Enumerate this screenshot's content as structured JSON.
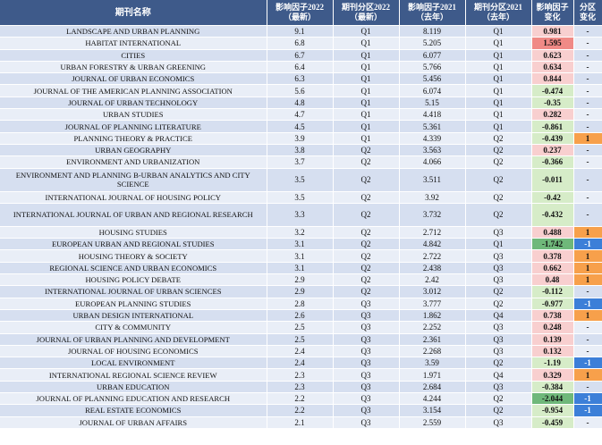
{
  "headers": {
    "name": "期刊名称",
    "if2022": "影响因子2022\n（最新）",
    "q2022": "期刊分区2022\n（最新）",
    "if2021": "影响因子2021\n（去年）",
    "q2021": "期刊分区2021\n（去年）",
    "if_change": "影响因子\n变化",
    "q_change": "分区\n变化"
  },
  "colors": {
    "header_bg": "#3e5a8a",
    "row_even": "#d6dff0",
    "row_odd": "#e9eef7",
    "increase_light": "#f8cfcf",
    "increase_strong": "#f08a86",
    "decrease_light": "#d6ecc8",
    "decrease_strong": "#6fb87a",
    "quartile_up": "#f7a04b",
    "quartile_down": "#3c7fd8"
  },
  "rows": [
    {
      "name": "LANDSCAPE AND URBAN PLANNING",
      "if2022": "9.1",
      "q2022": "Q1",
      "if2021": "8.119",
      "q2021": "Q1",
      "if_change": "0.981",
      "q_change": "-",
      "chg_tone": "up",
      "q_tone": "none"
    },
    {
      "name": "HABITAT INTERNATIONAL",
      "if2022": "6.8",
      "q2022": "Q1",
      "if2021": "5.205",
      "q2021": "Q1",
      "if_change": "1.595",
      "q_change": "-",
      "chg_tone": "up-strong",
      "q_tone": "none"
    },
    {
      "name": "CITIES",
      "if2022": "6.7",
      "q2022": "Q1",
      "if2021": "6.077",
      "q2021": "Q1",
      "if_change": "0.623",
      "q_change": "-",
      "chg_tone": "up",
      "q_tone": "none"
    },
    {
      "name": "URBAN FORESTRY & URBAN GREENING",
      "if2022": "6.4",
      "q2022": "Q1",
      "if2021": "5.766",
      "q2021": "Q1",
      "if_change": "0.634",
      "q_change": "-",
      "chg_tone": "up",
      "q_tone": "none"
    },
    {
      "name": "JOURNAL OF URBAN ECONOMICS",
      "if2022": "6.3",
      "q2022": "Q1",
      "if2021": "5.456",
      "q2021": "Q1",
      "if_change": "0.844",
      "q_change": "-",
      "chg_tone": "up",
      "q_tone": "none"
    },
    {
      "name": "JOURNAL OF THE AMERICAN PLANNING ASSOCIATION",
      "if2022": "5.6",
      "q2022": "Q1",
      "if2021": "6.074",
      "q2021": "Q1",
      "if_change": "-0.474",
      "q_change": "-",
      "chg_tone": "down",
      "q_tone": "none"
    },
    {
      "name": "JOURNAL OF URBAN TECHNOLOGY",
      "if2022": "4.8",
      "q2022": "Q1",
      "if2021": "5.15",
      "q2021": "Q1",
      "if_change": "-0.35",
      "q_change": "-",
      "chg_tone": "down",
      "q_tone": "none"
    },
    {
      "name": "URBAN STUDIES",
      "if2022": "4.7",
      "q2022": "Q1",
      "if2021": "4.418",
      "q2021": "Q1",
      "if_change": "0.282",
      "q_change": "-",
      "chg_tone": "up",
      "q_tone": "none"
    },
    {
      "name": "JOURNAL OF PLANNING LITERATURE",
      "if2022": "4.5",
      "q2022": "Q1",
      "if2021": "5.361",
      "q2021": "Q1",
      "if_change": "-0.861",
      "q_change": "-",
      "chg_tone": "down",
      "q_tone": "none"
    },
    {
      "name": "PLANNING THEORY & PRACTICE",
      "if2022": "3.9",
      "q2022": "Q1",
      "if2021": "4.339",
      "q2021": "Q2",
      "if_change": "-0.439",
      "q_change": "1",
      "chg_tone": "down",
      "q_tone": "up"
    },
    {
      "name": "URBAN GEOGRAPHY",
      "if2022": "3.8",
      "q2022": "Q2",
      "if2021": "3.563",
      "q2021": "Q2",
      "if_change": "0.237",
      "q_change": "-",
      "chg_tone": "up",
      "q_tone": "none"
    },
    {
      "name": "ENVIRONMENT AND URBANIZATION",
      "if2022": "3.7",
      "q2022": "Q2",
      "if2021": "4.066",
      "q2021": "Q2",
      "if_change": "-0.366",
      "q_change": "-",
      "chg_tone": "down",
      "q_tone": "none"
    },
    {
      "name": "ENVIRONMENT AND PLANNING B-URBAN ANALYTICS AND CITY SCIENCE",
      "if2022": "3.5",
      "q2022": "Q2",
      "if2021": "3.511",
      "q2021": "Q2",
      "if_change": "-0.011",
      "q_change": "-",
      "chg_tone": "down",
      "q_tone": "none",
      "tall": true
    },
    {
      "name": "INTERNATIONAL JOURNAL OF HOUSING POLICY",
      "if2022": "3.5",
      "q2022": "Q2",
      "if2021": "3.92",
      "q2021": "Q2",
      "if_change": "-0.42",
      "q_change": "-",
      "chg_tone": "down",
      "q_tone": "none"
    },
    {
      "name": "INTERNATIONAL JOURNAL OF URBAN AND REGIONAL RESEARCH",
      "if2022": "3.3",
      "q2022": "Q2",
      "if2021": "3.732",
      "q2021": "Q2",
      "if_change": "-0.432",
      "q_change": "-",
      "chg_tone": "down",
      "q_tone": "none",
      "tall": true
    },
    {
      "name": "HOUSING STUDIES",
      "if2022": "3.2",
      "q2022": "Q2",
      "if2021": "2.712",
      "q2021": "Q3",
      "if_change": "0.488",
      "q_change": "1",
      "chg_tone": "up",
      "q_tone": "up"
    },
    {
      "name": "EUROPEAN URBAN AND REGIONAL STUDIES",
      "if2022": "3.1",
      "q2022": "Q2",
      "if2021": "4.842",
      "q2021": "Q1",
      "if_change": "-1.742",
      "q_change": "-1",
      "chg_tone": "down-strong",
      "q_tone": "down"
    },
    {
      "name": "HOUSING THEORY & SOCIETY",
      "if2022": "3.1",
      "q2022": "Q2",
      "if2021": "2.722",
      "q2021": "Q3",
      "if_change": "0.378",
      "q_change": "1",
      "chg_tone": "up",
      "q_tone": "up"
    },
    {
      "name": "REGIONAL SCIENCE AND URBAN ECONOMICS",
      "if2022": "3.1",
      "q2022": "Q2",
      "if2021": "2.438",
      "q2021": "Q3",
      "if_change": "0.662",
      "q_change": "1",
      "chg_tone": "up",
      "q_tone": "up"
    },
    {
      "name": "HOUSING POLICY DEBATE",
      "if2022": "2.9",
      "q2022": "Q2",
      "if2021": "2.42",
      "q2021": "Q3",
      "if_change": "0.48",
      "q_change": "1",
      "chg_tone": "up",
      "q_tone": "up"
    },
    {
      "name": "INTERNATIONAL JOURNAL OF URBAN SCIENCES",
      "if2022": "2.9",
      "q2022": "Q2",
      "if2021": "3.012",
      "q2021": "Q2",
      "if_change": "-0.112",
      "q_change": "-",
      "chg_tone": "down",
      "q_tone": "none"
    },
    {
      "name": "EUROPEAN PLANNING STUDIES",
      "if2022": "2.8",
      "q2022": "Q3",
      "if2021": "3.777",
      "q2021": "Q2",
      "if_change": "-0.977",
      "q_change": "-1",
      "chg_tone": "down",
      "q_tone": "down"
    },
    {
      "name": "URBAN DESIGN INTERNATIONAL",
      "if2022": "2.6",
      "q2022": "Q3",
      "if2021": "1.862",
      "q2021": "Q4",
      "if_change": "0.738",
      "q_change": "1",
      "chg_tone": "up",
      "q_tone": "up"
    },
    {
      "name": "CITY & COMMUNITY",
      "if2022": "2.5",
      "q2022": "Q3",
      "if2021": "2.252",
      "q2021": "Q3",
      "if_change": "0.248",
      "q_change": "-",
      "chg_tone": "up",
      "q_tone": "none"
    },
    {
      "name": "JOURNAL OF URBAN PLANNING AND DEVELOPMENT",
      "if2022": "2.5",
      "q2022": "Q3",
      "if2021": "2.361",
      "q2021": "Q3",
      "if_change": "0.139",
      "q_change": "-",
      "chg_tone": "up",
      "q_tone": "none"
    },
    {
      "name": "JOURNAL OF HOUSING ECONOMICS",
      "if2022": "2.4",
      "q2022": "Q3",
      "if2021": "2.268",
      "q2021": "Q3",
      "if_change": "0.132",
      "q_change": "-",
      "chg_tone": "up",
      "q_tone": "none"
    },
    {
      "name": "LOCAL ENVIRONMENT",
      "if2022": "2.4",
      "q2022": "Q3",
      "if2021": "3.59",
      "q2021": "Q2",
      "if_change": "-1.19",
      "q_change": "-1",
      "chg_tone": "down",
      "q_tone": "down"
    },
    {
      "name": "INTERNATIONAL REGIONAL SCIENCE REVIEW",
      "if2022": "2.3",
      "q2022": "Q3",
      "if2021": "1.971",
      "q2021": "Q4",
      "if_change": "0.329",
      "q_change": "1",
      "chg_tone": "up",
      "q_tone": "up"
    },
    {
      "name": "URBAN EDUCATION",
      "if2022": "2.3",
      "q2022": "Q3",
      "if2021": "2.684",
      "q2021": "Q3",
      "if_change": "-0.384",
      "q_change": "-",
      "chg_tone": "down",
      "q_tone": "none"
    },
    {
      "name": "JOURNAL OF PLANNING EDUCATION AND RESEARCH",
      "if2022": "2.2",
      "q2022": "Q3",
      "if2021": "4.244",
      "q2021": "Q2",
      "if_change": "-2.044",
      "q_change": "-1",
      "chg_tone": "down-strong",
      "q_tone": "down"
    },
    {
      "name": "REAL ESTATE ECONOMICS",
      "if2022": "2.2",
      "q2022": "Q3",
      "if2021": "3.154",
      "q2021": "Q2",
      "if_change": "-0.954",
      "q_change": "-1",
      "chg_tone": "down",
      "q_tone": "down"
    },
    {
      "name": "JOURNAL OF URBAN AFFAIRS",
      "if2022": "2.1",
      "q2022": "Q3",
      "if2021": "2.559",
      "q2021": "Q3",
      "if_change": "-0.459",
      "q_change": "-",
      "chg_tone": "down",
      "q_tone": "none"
    }
  ]
}
